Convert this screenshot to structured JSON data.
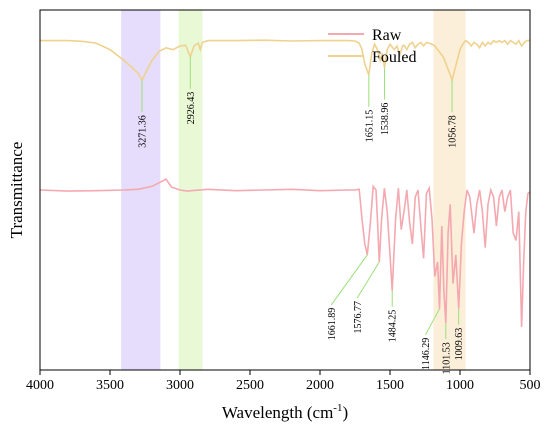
{
  "chart_data": {
    "type": "line",
    "title": "",
    "xlabel": "Wavelength (cm",
    "xlabel_sup": "-1",
    "xlabel_end": ")",
    "ylabel": "Transmittance",
    "xlim": [
      4000,
      500
    ],
    "x_reversed": true,
    "y_ticks_shown": false,
    "grid": false,
    "legend_position": "top-right",
    "x_ticks": [
      "4000",
      "3500",
      "3000",
      "2500",
      "2000",
      "1500",
      "1000",
      "500"
    ],
    "x_tick_values": [
      4000,
      3500,
      3000,
      2500,
      2000,
      1500,
      1000,
      500
    ],
    "bands": [
      {
        "from": 3420,
        "to": 3140,
        "color": "#e6dcfb"
      },
      {
        "from": 3010,
        "to": 2840,
        "color": "#e9f9d6"
      },
      {
        "from": 1190,
        "to": 960,
        "color": "#fbefd9"
      }
    ],
    "series": [
      {
        "name": "Raw",
        "color": "#f4a9b0",
        "points": [
          [
            4000,
            0.5
          ],
          [
            3800,
            0.503
          ],
          [
            3600,
            0.502
          ],
          [
            3400,
            0.5
          ],
          [
            3300,
            0.498
          ],
          [
            3200,
            0.49
          ],
          [
            3100,
            0.47
          ],
          [
            3060,
            0.492
          ],
          [
            3000,
            0.5
          ],
          [
            2950,
            0.503
          ],
          [
            2800,
            0.498
          ],
          [
            2600,
            0.502
          ],
          [
            2400,
            0.5
          ],
          [
            2200,
            0.498
          ],
          [
            2000,
            0.502
          ],
          [
            1800,
            0.5
          ],
          [
            1750,
            0.5
          ],
          [
            1720,
            0.498
          ],
          [
            1700,
            0.58
          ],
          [
            1680,
            0.65
          ],
          [
            1661.89,
            0.68
          ],
          [
            1640,
            0.59
          ],
          [
            1620,
            0.49
          ],
          [
            1600,
            0.5
          ],
          [
            1590,
            0.58
          ],
          [
            1576.77,
            0.7
          ],
          [
            1560,
            0.58
          ],
          [
            1540,
            0.495
          ],
          [
            1520,
            0.56
          ],
          [
            1500,
            0.68
          ],
          [
            1484.25,
            0.78
          ],
          [
            1460,
            0.58
          ],
          [
            1440,
            0.495
          ],
          [
            1420,
            0.61
          ],
          [
            1400,
            0.56
          ],
          [
            1380,
            0.5
          ],
          [
            1360,
            0.59
          ],
          [
            1340,
            0.65
          ],
          [
            1320,
            0.52
          ],
          [
            1300,
            0.5
          ],
          [
            1280,
            0.6
          ],
          [
            1260,
            0.69
          ],
          [
            1240,
            0.51
          ],
          [
            1220,
            0.495
          ],
          [
            1200,
            0.58
          ],
          [
            1180,
            0.74
          ],
          [
            1160,
            0.7
          ],
          [
            1146.29,
            0.83
          ],
          [
            1130,
            0.6
          ],
          [
            1115,
            0.78
          ],
          [
            1101.53,
            0.87
          ],
          [
            1085,
            0.62
          ],
          [
            1070,
            0.54
          ],
          [
            1050,
            0.76
          ],
          [
            1030,
            0.68
          ],
          [
            1009.63,
            0.83
          ],
          [
            990,
            0.65
          ],
          [
            970,
            0.56
          ],
          [
            950,
            0.5
          ],
          [
            930,
            0.52
          ],
          [
            900,
            0.62
          ],
          [
            880,
            0.54
          ],
          [
            860,
            0.5
          ],
          [
            840,
            0.56
          ],
          [
            820,
            0.66
          ],
          [
            800,
            0.54
          ],
          [
            780,
            0.5
          ],
          [
            760,
            0.52
          ],
          [
            740,
            0.6
          ],
          [
            720,
            0.52
          ],
          [
            700,
            0.5
          ],
          [
            680,
            0.56
          ],
          [
            660,
            0.52
          ],
          [
            640,
            0.5
          ],
          [
            620,
            0.62
          ],
          [
            600,
            0.64
          ],
          [
            580,
            0.56
          ],
          [
            560,
            0.88
          ],
          [
            545,
            0.7
          ],
          [
            530,
            0.56
          ],
          [
            515,
            0.51
          ],
          [
            500,
            0.505
          ]
        ]
      },
      {
        "name": "Fouled",
        "color": "#efd28e",
        "points": [
          [
            4000,
            0.085
          ],
          [
            3800,
            0.085
          ],
          [
            3700,
            0.087
          ],
          [
            3600,
            0.092
          ],
          [
            3500,
            0.11
          ],
          [
            3400,
            0.14
          ],
          [
            3300,
            0.175
          ],
          [
            3271.36,
            0.195
          ],
          [
            3240,
            0.17
          ],
          [
            3200,
            0.14
          ],
          [
            3150,
            0.115
          ],
          [
            3100,
            0.105
          ],
          [
            3050,
            0.11
          ],
          [
            3000,
            0.1
          ],
          [
            2960,
            0.098
          ],
          [
            2926.43,
            0.13
          ],
          [
            2900,
            0.1
          ],
          [
            2870,
            0.092
          ],
          [
            2855,
            0.11
          ],
          [
            2840,
            0.09
          ],
          [
            2800,
            0.085
          ],
          [
            2600,
            0.085
          ],
          [
            2400,
            0.084
          ],
          [
            2200,
            0.086
          ],
          [
            2000,
            0.085
          ],
          [
            1800,
            0.085
          ],
          [
            1750,
            0.086
          ],
          [
            1720,
            0.092
          ],
          [
            1700,
            0.11
          ],
          [
            1680,
            0.15
          ],
          [
            1651.15,
            0.18
          ],
          [
            1630,
            0.12
          ],
          [
            1610,
            0.095
          ],
          [
            1590,
            0.11
          ],
          [
            1570,
            0.14
          ],
          [
            1555,
            0.12
          ],
          [
            1538.96,
            0.16
          ],
          [
            1520,
            0.11
          ],
          [
            1500,
            0.095
          ],
          [
            1470,
            0.11
          ],
          [
            1450,
            0.1
          ],
          [
            1430,
            0.125
          ],
          [
            1410,
            0.1
          ],
          [
            1400,
            0.098
          ],
          [
            1380,
            0.11
          ],
          [
            1360,
            0.095
          ],
          [
            1340,
            0.09
          ],
          [
            1320,
            0.105
          ],
          [
            1300,
            0.095
          ],
          [
            1280,
            0.09
          ],
          [
            1260,
            0.1
          ],
          [
            1240,
            0.09
          ],
          [
            1200,
            0.095
          ],
          [
            1180,
            0.1
          ],
          [
            1150,
            0.115
          ],
          [
            1120,
            0.13
          ],
          [
            1090,
            0.16
          ],
          [
            1070,
            0.18
          ],
          [
            1056.78,
            0.195
          ],
          [
            1040,
            0.17
          ],
          [
            1020,
            0.14
          ],
          [
            1000,
            0.11
          ],
          [
            980,
            0.095
          ],
          [
            960,
            0.085
          ],
          [
            940,
            0.09
          ],
          [
            920,
            0.1
          ],
          [
            900,
            0.09
          ],
          [
            880,
            0.095
          ],
          [
            860,
            0.105
          ],
          [
            840,
            0.09
          ],
          [
            820,
            0.1
          ],
          [
            800,
            0.09
          ],
          [
            780,
            0.095
          ],
          [
            760,
            0.085
          ],
          [
            740,
            0.09
          ],
          [
            720,
            0.085
          ],
          [
            700,
            0.09
          ],
          [
            680,
            0.085
          ],
          [
            660,
            0.095
          ],
          [
            640,
            0.085
          ],
          [
            620,
            0.09
          ],
          [
            600,
            0.095
          ],
          [
            580,
            0.085
          ],
          [
            560,
            0.1
          ],
          [
            540,
            0.09
          ],
          [
            520,
            0.085
          ],
          [
            500,
            0.085
          ]
        ]
      }
    ],
    "annotations": [
      {
        "label": "3271.36",
        "x": 3271.36,
        "series": "Fouled",
        "style": "vertical"
      },
      {
        "label": "2926.43",
        "x": 2926.43,
        "series": "Fouled",
        "style": "vertical"
      },
      {
        "label": "1651.15",
        "x": 1651.15,
        "series": "Fouled",
        "style": "vertical"
      },
      {
        "label": "1538.96",
        "x": 1538.96,
        "series": "Fouled",
        "style": "vertical"
      },
      {
        "label": "1056.78",
        "x": 1056.78,
        "series": "Fouled",
        "style": "vertical"
      },
      {
        "label": "1661.89",
        "x": 1661.89,
        "series": "Raw",
        "style": "diagonal"
      },
      {
        "label": "1576.77",
        "x": 1576.77,
        "series": "Raw",
        "style": "diagonal"
      },
      {
        "label": "1484.25",
        "x": 1484.25,
        "series": "Raw",
        "style": "vertical"
      },
      {
        "label": "1146.29",
        "x": 1146.29,
        "series": "Raw",
        "style": "diagonal"
      },
      {
        "label": "1101.53",
        "x": 1101.53,
        "series": "Raw",
        "style": "vertical"
      },
      {
        "label": "1009.63",
        "x": 1009.63,
        "series": "Raw",
        "style": "vertical"
      }
    ]
  }
}
